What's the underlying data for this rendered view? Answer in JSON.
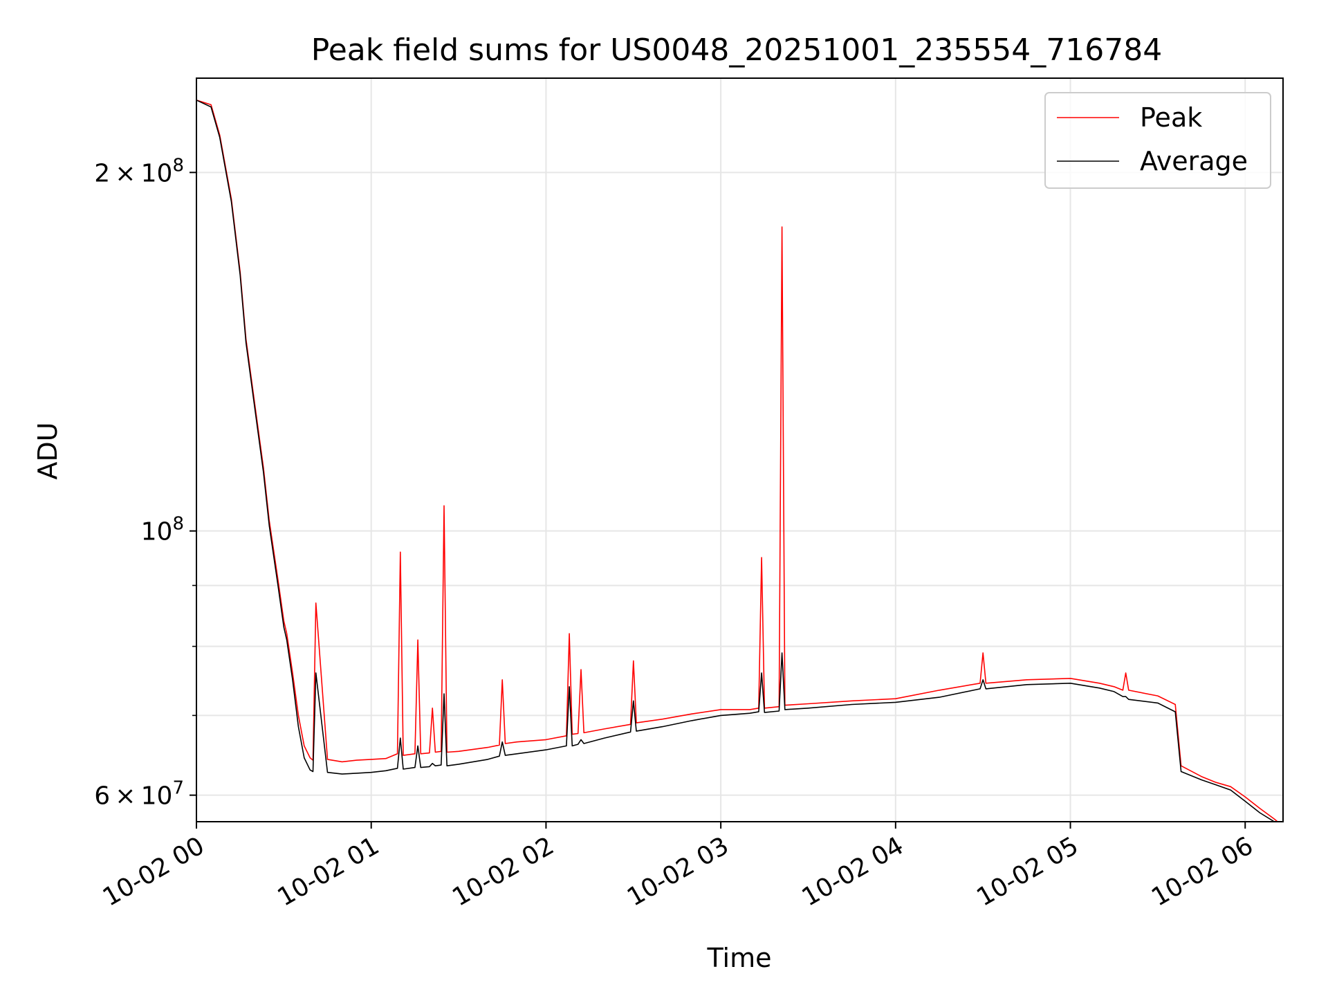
{
  "chart_data": {
    "type": "line",
    "title": "Peak field sums for US0048_20251001_235554_716784",
    "xlabel": "Time",
    "ylabel": "ADU",
    "yscale": "log",
    "ylim": [
      57000000,
      240000000
    ],
    "xlim": [
      "2025-10-02 00:00",
      "2025-10-02 06:13"
    ],
    "grid": true,
    "legend_position": "top-right",
    "x_ticks": [
      {
        "value": "2025-10-02 00:00",
        "label": "10-02 00"
      },
      {
        "value": "2025-10-02 01:00",
        "label": "10-02 01"
      },
      {
        "value": "2025-10-02 02:00",
        "label": "10-02 02"
      },
      {
        "value": "2025-10-02 03:00",
        "label": "10-02 03"
      },
      {
        "value": "2025-10-02 04:00",
        "label": "10-02 04"
      },
      {
        "value": "2025-10-02 05:00",
        "label": "10-02 05"
      },
      {
        "value": "2025-10-02 06:00",
        "label": "10-02 06"
      }
    ],
    "y_ticks": [
      {
        "value": 60000000,
        "base": "6",
        "sep": "×",
        "mant": "10",
        "exp": "7"
      },
      {
        "value": 100000000,
        "base": "",
        "sep": "",
        "mant": "10",
        "exp": "8"
      },
      {
        "value": 200000000,
        "base": "2",
        "sep": "×",
        "mant": "10",
        "exp": "8"
      }
    ],
    "y_minor_ticks": [
      70000000,
      80000000,
      90000000
    ],
    "series": [
      {
        "name": "Peak",
        "color": "#ff0000",
        "x": [
          "2025-10-02 00:00",
          "2025-10-02 00:05",
          "2025-10-02 00:08",
          "2025-10-02 00:12",
          "2025-10-02 00:15",
          "2025-10-02 00:17",
          "2025-10-02 00:20",
          "2025-10-02 00:23",
          "2025-10-02 00:25",
          "2025-10-02 00:28",
          "2025-10-02 00:30",
          "2025-10-02 00:31",
          "2025-10-02 00:33",
          "2025-10-02 00:35",
          "2025-10-02 00:37",
          "2025-10-02 00:39",
          "2025-10-02 00:40",
          "2025-10-02 00:41",
          "2025-10-02 00:45",
          "2025-10-02 00:50",
          "2025-10-02 00:55",
          "2025-10-02 01:00",
          "2025-10-02 01:05",
          "2025-10-02 01:09",
          "2025-10-02 01:10",
          "2025-10-02 01:11",
          "2025-10-02 01:15",
          "2025-10-02 01:16",
          "2025-10-02 01:17",
          "2025-10-02 01:20",
          "2025-10-02 01:21",
          "2025-10-02 01:22",
          "2025-10-02 01:24",
          "2025-10-02 01:25",
          "2025-10-02 01:26",
          "2025-10-02 01:30",
          "2025-10-02 01:40",
          "2025-10-02 01:44",
          "2025-10-02 01:45",
          "2025-10-02 01:46",
          "2025-10-02 01:50",
          "2025-10-02 02:00",
          "2025-10-02 02:07",
          "2025-10-02 02:08",
          "2025-10-02 02:09",
          "2025-10-02 02:11",
          "2025-10-02 02:12",
          "2025-10-02 02:13",
          "2025-10-02 02:20",
          "2025-10-02 02:29",
          "2025-10-02 02:30",
          "2025-10-02 02:31",
          "2025-10-02 02:40",
          "2025-10-02 02:50",
          "2025-10-02 03:00",
          "2025-10-02 03:10",
          "2025-10-02 03:13",
          "2025-10-02 03:14",
          "2025-10-02 03:15",
          "2025-10-02 03:20",
          "2025-10-02 03:21",
          "2025-10-02 03:22",
          "2025-10-02 03:30",
          "2025-10-02 03:45",
          "2025-10-02 04:00",
          "2025-10-02 04:15",
          "2025-10-02 04:29",
          "2025-10-02 04:30",
          "2025-10-02 04:31",
          "2025-10-02 04:45",
          "2025-10-02 05:00",
          "2025-10-02 05:10",
          "2025-10-02 05:15",
          "2025-10-02 05:18",
          "2025-10-02 05:19",
          "2025-10-02 05:20",
          "2025-10-02 05:30",
          "2025-10-02 05:36",
          "2025-10-02 05:38",
          "2025-10-02 05:45",
          "2025-10-02 05:50",
          "2025-10-02 05:55",
          "2025-10-02 06:00",
          "2025-10-02 06:05",
          "2025-10-02 06:10",
          "2025-10-02 06:13"
        ],
        "values": [
          230000000,
          228000000,
          215000000,
          190000000,
          165000000,
          145000000,
          128000000,
          113000000,
          102000000,
          91000000,
          84000000,
          82000000,
          76000000,
          70000000,
          66000000,
          64500000,
          64200000,
          87000000,
          64300000,
          64000000,
          64200000,
          64300000,
          64400000,
          65000000,
          96000000,
          64800000,
          65000000,
          81000000,
          65000000,
          65100000,
          71000000,
          65200000,
          65300000,
          105000000,
          65200000,
          65300000,
          65800000,
          66100000,
          75000000,
          66300000,
          66500000,
          66800000,
          67300000,
          82000000,
          67500000,
          67600000,
          76500000,
          67700000,
          68200000,
          68800000,
          77800000,
          69000000,
          69500000,
          70200000,
          70800000,
          70800000,
          71000000,
          95000000,
          71000000,
          71200000,
          180000000,
          71400000,
          71600000,
          72000000,
          72300000,
          73500000,
          74500000,
          79000000,
          74500000,
          75000000,
          75200000,
          74500000,
          74000000,
          73500000,
          76000000,
          73500000,
          72700000,
          71500000,
          63500000,
          62200000,
          61500000,
          61000000,
          59800000,
          58500000,
          57300000,
          56500000
        ]
      },
      {
        "name": "Average",
        "color": "#000000",
        "x": [
          "2025-10-02 00:00",
          "2025-10-02 00:05",
          "2025-10-02 00:08",
          "2025-10-02 00:12",
          "2025-10-02 00:15",
          "2025-10-02 00:17",
          "2025-10-02 00:20",
          "2025-10-02 00:23",
          "2025-10-02 00:25",
          "2025-10-02 00:28",
          "2025-10-02 00:30",
          "2025-10-02 00:31",
          "2025-10-02 00:33",
          "2025-10-02 00:35",
          "2025-10-02 00:37",
          "2025-10-02 00:39",
          "2025-10-02 00:40",
          "2025-10-02 00:41",
          "2025-10-02 00:45",
          "2025-10-02 00:50",
          "2025-10-02 00:55",
          "2025-10-02 01:00",
          "2025-10-02 01:05",
          "2025-10-02 01:09",
          "2025-10-02 01:10",
          "2025-10-02 01:11",
          "2025-10-02 01:15",
          "2025-10-02 01:16",
          "2025-10-02 01:17",
          "2025-10-02 01:20",
          "2025-10-02 01:21",
          "2025-10-02 01:22",
          "2025-10-02 01:24",
          "2025-10-02 01:25",
          "2025-10-02 01:26",
          "2025-10-02 01:30",
          "2025-10-02 01:40",
          "2025-10-02 01:44",
          "2025-10-02 01:45",
          "2025-10-02 01:46",
          "2025-10-02 01:50",
          "2025-10-02 02:00",
          "2025-10-02 02:07",
          "2025-10-02 02:08",
          "2025-10-02 02:09",
          "2025-10-02 02:11",
          "2025-10-02 02:12",
          "2025-10-02 02:13",
          "2025-10-02 02:20",
          "2025-10-02 02:29",
          "2025-10-02 02:30",
          "2025-10-02 02:31",
          "2025-10-02 02:40",
          "2025-10-02 02:50",
          "2025-10-02 03:00",
          "2025-10-02 03:10",
          "2025-10-02 03:13",
          "2025-10-02 03:14",
          "2025-10-02 03:15",
          "2025-10-02 03:20",
          "2025-10-02 03:21",
          "2025-10-02 03:22",
          "2025-10-02 03:30",
          "2025-10-02 03:45",
          "2025-10-02 04:00",
          "2025-10-02 04:15",
          "2025-10-02 04:29",
          "2025-10-02 04:30",
          "2025-10-02 04:31",
          "2025-10-02 04:45",
          "2025-10-02 05:00",
          "2025-10-02 05:10",
          "2025-10-02 05:15",
          "2025-10-02 05:18",
          "2025-10-02 05:19",
          "2025-10-02 05:20",
          "2025-10-02 05:30",
          "2025-10-02 05:36",
          "2025-10-02 05:38",
          "2025-10-02 05:45",
          "2025-10-02 05:50",
          "2025-10-02 05:55",
          "2025-10-02 06:00",
          "2025-10-02 06:05",
          "2025-10-02 06:10",
          "2025-10-02 06:13"
        ],
        "values": [
          230000000,
          227000000,
          214000000,
          189000000,
          164000000,
          144000000,
          127000000,
          112000000,
          101000000,
          90000000,
          83000000,
          81000000,
          75000000,
          68500000,
          64500000,
          63000000,
          62800000,
          76000000,
          62700000,
          62500000,
          62600000,
          62700000,
          62900000,
          63200000,
          67000000,
          63100000,
          63300000,
          66000000,
          63300000,
          63400000,
          63800000,
          63500000,
          63600000,
          73000000,
          63500000,
          63700000,
          64300000,
          64700000,
          66500000,
          64800000,
          65000000,
          65500000,
          66000000,
          74000000,
          66000000,
          66200000,
          66800000,
          66300000,
          67000000,
          67800000,
          72000000,
          67900000,
          68500000,
          69300000,
          70000000,
          70300000,
          70500000,
          76000000,
          70400000,
          70600000,
          79000000,
          70800000,
          71000000,
          71500000,
          71800000,
          72500000,
          73700000,
          75000000,
          73700000,
          74300000,
          74500000,
          73800000,
          73300000,
          72600000,
          72600000,
          72200000,
          71700000,
          70500000,
          62800000,
          61800000,
          61200000,
          60600000,
          59300000,
          58000000,
          57000000,
          56300000
        ]
      }
    ]
  }
}
